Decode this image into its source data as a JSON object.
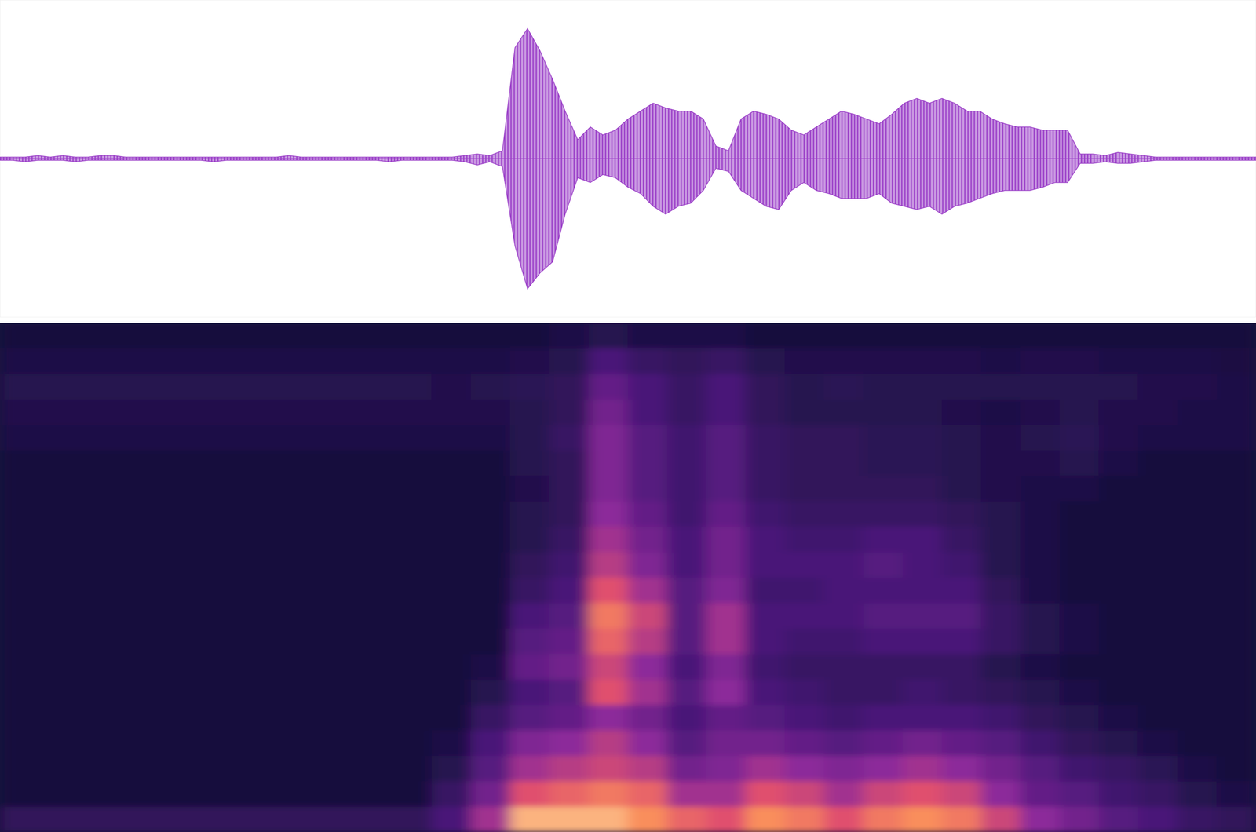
{
  "chart_data": [
    {
      "type": "area",
      "xlim": [
        0,
        100
      ],
      "ylim": [
        -1,
        1
      ],
      "tick_labels": false,
      "color": "#9b40c8",
      "x": [
        0,
        1,
        2,
        3,
        4,
        5,
        6,
        7,
        8,
        9,
        10,
        11,
        12,
        13,
        14,
        15,
        16,
        17,
        18,
        19,
        20,
        21,
        22,
        23,
        24,
        25,
        26,
        27,
        28,
        29,
        30,
        31,
        32,
        33,
        34,
        35,
        36,
        37,
        38,
        39,
        40,
        41,
        42,
        43,
        44,
        45,
        46,
        47,
        48,
        49,
        50,
        51,
        52,
        53,
        54,
        55,
        56,
        57,
        58,
        59,
        60,
        61,
        62,
        63,
        64,
        65,
        66,
        67,
        68,
        69,
        70,
        71,
        72,
        73,
        74,
        75,
        76,
        77,
        78,
        79,
        80,
        81,
        82,
        83,
        84,
        85,
        86,
        87,
        88,
        89,
        90,
        91,
        92,
        93,
        94,
        95,
        96,
        97,
        98,
        99,
        100
      ],
      "series": [
        {
          "values": [
            0.01,
            0.01,
            0.01,
            0.02,
            0.01,
            0.02,
            0.01,
            0.01,
            0.02,
            0.02,
            0.01,
            0.01,
            0.01,
            0.01,
            0.01,
            0.01,
            0.01,
            0.01,
            0.01,
            0.01,
            0.01,
            0.01,
            0.01,
            0.02,
            0.01,
            0.01,
            0.01,
            0.01,
            0.01,
            0.01,
            0.01,
            0.01,
            0.01,
            0.01,
            0.01,
            0.01,
            0.01,
            0.02,
            0.03,
            0.02,
            0.05,
            0.7,
            0.82,
            0.68,
            0.5,
            0.3,
            0.12,
            0.2,
            0.15,
            0.18,
            0.25,
            0.3,
            0.35,
            0.32,
            0.3,
            0.3,
            0.25,
            0.08,
            0.05,
            0.25,
            0.3,
            0.28,
            0.25,
            0.18,
            0.15,
            0.2,
            0.25,
            0.3,
            0.28,
            0.25,
            0.22,
            0.28,
            0.35,
            0.38,
            0.35,
            0.38,
            0.35,
            0.3,
            0.3,
            0.25,
            0.22,
            0.2,
            0.2,
            0.18,
            0.18,
            0.18,
            0.03,
            0.03,
            0.02,
            0.04,
            0.03,
            0.02,
            0.01,
            0.01,
            0.01,
            0.01,
            0.01,
            0.01,
            0.01,
            0.01,
            0.01
          ]
        },
        {
          "values": [
            -0.01,
            -0.01,
            -0.02,
            -0.01,
            -0.01,
            -0.01,
            -0.02,
            -0.01,
            -0.01,
            -0.01,
            -0.01,
            -0.01,
            -0.01,
            -0.01,
            -0.01,
            -0.01,
            -0.01,
            -0.02,
            -0.01,
            -0.01,
            -0.01,
            -0.01,
            -0.01,
            -0.01,
            -0.01,
            -0.01,
            -0.01,
            -0.01,
            -0.01,
            -0.01,
            -0.01,
            -0.02,
            -0.01,
            -0.01,
            -0.01,
            -0.01,
            -0.01,
            -0.02,
            -0.04,
            -0.02,
            -0.05,
            -0.55,
            -0.82,
            -0.72,
            -0.65,
            -0.35,
            -0.12,
            -0.15,
            -0.1,
            -0.12,
            -0.18,
            -0.22,
            -0.3,
            -0.35,
            -0.3,
            -0.28,
            -0.2,
            -0.06,
            -0.08,
            -0.2,
            -0.25,
            -0.3,
            -0.32,
            -0.2,
            -0.15,
            -0.2,
            -0.22,
            -0.25,
            -0.25,
            -0.25,
            -0.22,
            -0.28,
            -0.3,
            -0.32,
            -0.3,
            -0.35,
            -0.3,
            -0.28,
            -0.25,
            -0.22,
            -0.2,
            -0.2,
            -0.2,
            -0.18,
            -0.15,
            -0.15,
            -0.03,
            -0.03,
            -0.02,
            -0.03,
            -0.03,
            -0.02,
            -0.01,
            -0.01,
            -0.01,
            -0.01,
            -0.01,
            -0.01,
            -0.01,
            -0.01,
            -0.01
          ]
        }
      ]
    },
    {
      "type": "heatmap",
      "xlim": [
        0,
        100
      ],
      "ylim": [
        0,
        1
      ],
      "tick_labels": false,
      "zlim": [
        0,
        1
      ],
      "cells": [
        [
          0.15,
          0,
          0,
          0,
          0,
          0,
          0,
          0,
          0,
          0,
          0,
          0,
          0,
          0,
          0,
          0.05,
          0.08,
          0.1,
          0.05,
          0
        ],
        [
          0.15,
          0,
          0,
          0,
          0,
          0,
          0,
          0,
          0,
          0,
          0,
          0,
          0,
          0,
          0,
          0.05,
          0.08,
          0.1,
          0.05,
          0
        ],
        [
          0.15,
          0,
          0,
          0,
          0,
          0,
          0,
          0,
          0,
          0,
          0,
          0,
          0,
          0,
          0,
          0.05,
          0.08,
          0.1,
          0.05,
          0
        ],
        [
          0.15,
          0,
          0,
          0,
          0,
          0,
          0,
          0,
          0,
          0,
          0,
          0,
          0,
          0,
          0,
          0.05,
          0.08,
          0.1,
          0.05,
          0
        ],
        [
          0.15,
          0,
          0,
          0,
          0,
          0,
          0,
          0,
          0,
          0,
          0,
          0,
          0,
          0,
          0,
          0.05,
          0.08,
          0.1,
          0.05,
          0
        ],
        [
          0.15,
          0,
          0,
          0,
          0,
          0,
          0,
          0,
          0,
          0,
          0,
          0,
          0,
          0,
          0,
          0.05,
          0.08,
          0.1,
          0.05,
          0
        ],
        [
          0.15,
          0,
          0,
          0,
          0,
          0,
          0,
          0,
          0,
          0,
          0,
          0,
          0,
          0,
          0,
          0.05,
          0.08,
          0.1,
          0.05,
          0
        ],
        [
          0.15,
          0,
          0,
          0,
          0,
          0,
          0,
          0,
          0,
          0,
          0,
          0,
          0,
          0,
          0,
          0.05,
          0.08,
          0.1,
          0.05,
          0
        ],
        [
          0.15,
          0,
          0,
          0,
          0,
          0,
          0,
          0,
          0,
          0,
          0,
          0,
          0,
          0,
          0,
          0.05,
          0.08,
          0.1,
          0.05,
          0
        ],
        [
          0.15,
          0,
          0,
          0,
          0,
          0,
          0,
          0,
          0,
          0,
          0,
          0,
          0,
          0,
          0,
          0.05,
          0.08,
          0.1,
          0.05,
          0
        ],
        [
          0.15,
          0,
          0,
          0,
          0,
          0,
          0,
          0,
          0,
          0,
          0,
          0,
          0,
          0,
          0,
          0.05,
          0.08,
          0.1,
          0.05,
          0
        ],
        [
          0.3,
          0.2,
          0.1,
          0.05,
          0,
          0,
          0,
          0,
          0,
          0,
          0,
          0,
          0,
          0,
          0,
          0.05,
          0.08,
          0.08,
          0.05,
          0
        ],
        [
          0.6,
          0.45,
          0.35,
          0.3,
          0.2,
          0.1,
          0.05,
          0,
          0,
          0,
          0,
          0,
          0,
          0,
          0,
          0.05,
          0.08,
          0.1,
          0.05,
          0
        ],
        [
          0.95,
          0.75,
          0.6,
          0.5,
          0.35,
          0.3,
          0.4,
          0.35,
          0.3,
          0.2,
          0.15,
          0.1,
          0.1,
          0.08,
          0.1,
          0.1,
          0.1,
          0.12,
          0.08,
          0
        ],
        [
          0.95,
          0.8,
          0.65,
          0.55,
          0.4,
          0.35,
          0.45,
          0.4,
          0.35,
          0.3,
          0.25,
          0.2,
          0.15,
          0.15,
          0.15,
          0.2,
          0.15,
          0.15,
          0.1,
          0.05
        ],
        [
          0.95,
          0.85,
          0.7,
          0.65,
          0.55,
          0.75,
          0.7,
          0.8,
          0.85,
          0.75,
          0.65,
          0.6,
          0.55,
          0.5,
          0.5,
          0.5,
          0.45,
          0.4,
          0.3,
          0.1
        ],
        [
          0.9,
          0.8,
          0.65,
          0.55,
          0.45,
          0.6,
          0.55,
          0.65,
          0.7,
          0.6,
          0.5,
          0.45,
          0.4,
          0.35,
          0.35,
          0.35,
          0.3,
          0.3,
          0.2,
          0.05
        ],
        [
          0.8,
          0.6,
          0.45,
          0.35,
          0.3,
          0.35,
          0.3,
          0.35,
          0.35,
          0.35,
          0.3,
          0.3,
          0.25,
          0.25,
          0.25,
          0.25,
          0.2,
          0.2,
          0.15,
          0.05
        ],
        [
          0.75,
          0.6,
          0.5,
          0.45,
          0.4,
          0.55,
          0.5,
          0.6,
          0.6,
          0.5,
          0.45,
          0.45,
          0.4,
          0.35,
          0.35,
          0.35,
          0.3,
          0.3,
          0.2,
          0.05
        ],
        [
          0.9,
          0.75,
          0.6,
          0.45,
          0.35,
          0.3,
          0.25,
          0.3,
          0.3,
          0.25,
          0.3,
          0.3,
          0.25,
          0.2,
          0.2,
          0.2,
          0.15,
          0.15,
          0.1,
          0
        ],
        [
          0.85,
          0.7,
          0.55,
          0.4,
          0.3,
          0.25,
          0.2,
          0.25,
          0.3,
          0.25,
          0.3,
          0.25,
          0.2,
          0.15,
          0.15,
          0.15,
          0.1,
          0.1,
          0.08,
          0
        ],
        [
          0.75,
          0.6,
          0.5,
          0.35,
          0.25,
          0.2,
          0.2,
          0.25,
          0.3,
          0.3,
          0.3,
          0.25,
          0.2,
          0.15,
          0.15,
          0.15,
          0.1,
          0.12,
          0.08,
          0
        ],
        [
          0.85,
          0.7,
          0.55,
          0.4,
          0.3,
          0.2,
          0.2,
          0.3,
          0.35,
          0.3,
          0.35,
          0.3,
          0.2,
          0.15,
          0.12,
          0.12,
          0.1,
          0.1,
          0.08,
          0
        ],
        [
          0.9,
          0.75,
          0.6,
          0.45,
          0.3,
          0.25,
          0.2,
          0.3,
          0.35,
          0.3,
          0.3,
          0.3,
          0.2,
          0.15,
          0.12,
          0.12,
          0.1,
          0.1,
          0.08,
          0
        ],
        [
          0.85,
          0.7,
          0.55,
          0.4,
          0.3,
          0.2,
          0.2,
          0.3,
          0.35,
          0.3,
          0.25,
          0.2,
          0.15,
          0.1,
          0.1,
          0.1,
          0.08,
          0.1,
          0.08,
          0
        ],
        [
          0.7,
          0.55,
          0.45,
          0.35,
          0.25,
          0.15,
          0.1,
          0.2,
          0.2,
          0.15,
          0.1,
          0.1,
          0.1,
          0.08,
          0.08,
          0.08,
          0.05,
          0.1,
          0.05,
          0
        ],
        [
          0.55,
          0.4,
          0.35,
          0.25,
          0.15,
          0.1,
          0.05,
          0.1,
          0.1,
          0.05,
          0.05,
          0.05,
          0.05,
          0.05,
          0.08,
          0.1,
          0.08,
          0.1,
          0.08,
          0
        ],
        [
          0.45,
          0.35,
          0.25,
          0.15,
          0.1,
          0.05,
          0,
          0.05,
          0.05,
          0,
          0,
          0,
          0,
          0.05,
          0.1,
          0.12,
          0.1,
          0.1,
          0.08,
          0
        ],
        [
          0.35,
          0.25,
          0.2,
          0.1,
          0.05,
          0,
          0,
          0,
          0,
          0,
          0,
          0,
          0,
          0,
          0.05,
          0.08,
          0.08,
          0.1,
          0.05,
          0
        ],
        [
          0.3,
          0.2,
          0.12,
          0.05,
          0,
          0,
          0,
          0,
          0,
          0,
          0,
          0,
          0,
          0,
          0,
          0.05,
          0.08,
          0.08,
          0.05,
          0
        ],
        [
          0.2,
          0.1,
          0.05,
          0,
          0,
          0,
          0,
          0,
          0,
          0,
          0,
          0,
          0,
          0,
          0,
          0.05,
          0.05,
          0.08,
          0.05,
          0
        ],
        [
          0.15,
          0.05,
          0,
          0,
          0,
          0,
          0,
          0,
          0,
          0,
          0,
          0,
          0,
          0,
          0,
          0.05,
          0.05,
          0.05,
          0.03,
          0
        ]
      ]
    }
  ]
}
